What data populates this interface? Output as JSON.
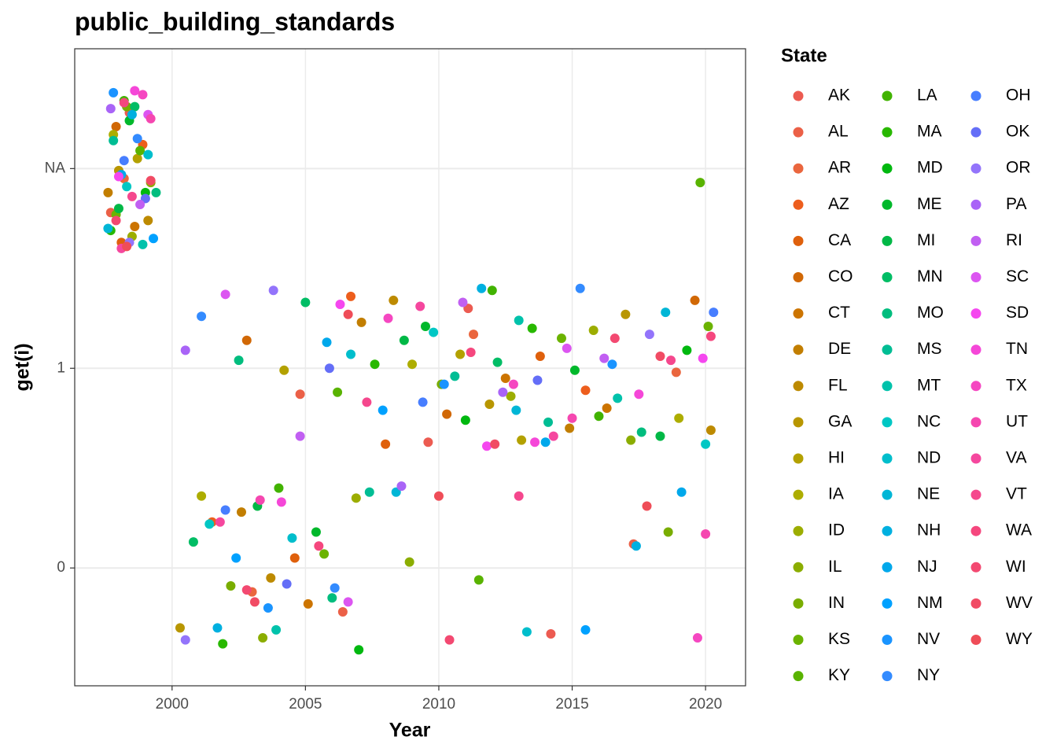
{
  "chart_data": {
    "type": "scatter",
    "title": "public_building_standards",
    "x_label": "Year",
    "y_label": "get(i)",
    "legend_title": "State",
    "xlim": [
      1996.35,
      2021.5
    ],
    "xticks": [
      2000,
      2005,
      2010,
      2015,
      2020
    ],
    "ylim": [
      -0.59,
      2.6
    ],
    "yticks": [
      0,
      1,
      {
        "value": 2,
        "label": "NA"
      }
    ],
    "grid": true,
    "series": [
      {
        "name": "AK",
        "color": "hsl(4,80%,62%)",
        "x": [
          1998.4,
          2009.6,
          2014.2,
          2011.1
        ],
        "values": [
          2.28,
          0.63,
          -0.33,
          1.3
        ]
      },
      {
        "name": "AL",
        "color": "hsl(9,80%,60%)",
        "x": [
          1997.7,
          2004.8,
          2017.3,
          2006.4
        ],
        "values": [
          1.78,
          0.87,
          0.12,
          -0.22
        ]
      },
      {
        "name": "AR",
        "color": "hsl(14,80%,58%)",
        "x": [
          1998.2,
          2011.3,
          2003.0,
          2018.9
        ],
        "values": [
          1.95,
          1.17,
          -0.12,
          0.98
        ]
      },
      {
        "name": "AZ",
        "color": "hsl(19,85%,52%)",
        "x": [
          1998.9,
          2006.7,
          2001.5,
          2015.5
        ],
        "values": [
          2.12,
          1.36,
          0.23,
          0.89
        ]
      },
      {
        "name": "CA",
        "color": "hsl(24,90%,46%)",
        "x": [
          1998.1,
          2013.8,
          2004.6,
          2008.0
        ],
        "values": [
          1.63,
          1.06,
          0.05,
          0.62
        ]
      },
      {
        "name": "CO",
        "color": "hsl(29,95%,42%)",
        "x": [
          1997.9,
          2002.8,
          2010.3,
          2019.6
        ],
        "values": [
          2.21,
          1.14,
          0.77,
          1.34
        ]
      },
      {
        "name": "CT",
        "color": "hsl(34,100%,40%)",
        "x": [
          1998.6,
          2012.5,
          2005.1,
          2016.3
        ],
        "values": [
          1.71,
          0.95,
          -0.18,
          0.8
        ]
      },
      {
        "name": "DE",
        "color": "hsl(39,100%,38%)",
        "x": [
          1997.6,
          2007.1,
          2002.6,
          2014.9
        ],
        "values": [
          1.88,
          1.23,
          0.28,
          0.7
        ]
      },
      {
        "name": "FL",
        "color": "hsl(44,100%,37%)",
        "x": [
          1999.1,
          2008.3,
          2020.2,
          2003.7
        ],
        "values": [
          1.74,
          1.34,
          0.69,
          -0.05
        ]
      },
      {
        "name": "GA",
        "color": "hsl(49,100%,36%)",
        "x": [
          1998.0,
          2011.9,
          2000.3,
          2017.0
        ],
        "values": [
          1.99,
          0.82,
          -0.3,
          1.27
        ]
      },
      {
        "name": "HI",
        "color": "hsl(54,100%,35%)",
        "x": [
          1998.7,
          2004.2,
          2013.1,
          2010.8
        ],
        "values": [
          2.05,
          0.99,
          0.64,
          1.07
        ]
      },
      {
        "name": "IA",
        "color": "hsl(60,100%,34%)",
        "x": [
          1997.8,
          2009.0,
          2001.1,
          2019.0
        ],
        "values": [
          2.17,
          1.02,
          0.36,
          0.75
        ]
      },
      {
        "name": "ID",
        "color": "hsl(66,100%,34%)",
        "x": [
          1998.5,
          2015.8,
          2006.9,
          2012.7
        ],
        "values": [
          1.66,
          1.19,
          0.35,
          0.86
        ]
      },
      {
        "name": "IL",
        "color": "hsl(72,100%,34%)",
        "x": [
          1999.2,
          2017.2,
          2003.4,
          2008.9
        ],
        "values": [
          1.93,
          0.64,
          -0.35,
          0.03
        ]
      },
      {
        "name": "IN",
        "color": "hsl(78,100%,34%)",
        "x": [
          1998.3,
          2010.1,
          2002.2,
          2018.6
        ],
        "values": [
          2.31,
          0.92,
          -0.09,
          0.18
        ]
      },
      {
        "name": "KS",
        "color": "hsl(84,100%,35%)",
        "x": [
          1997.9,
          2014.6,
          2005.7,
          2020.1
        ],
        "values": [
          1.77,
          1.15,
          0.07,
          1.21
        ]
      },
      {
        "name": "KY",
        "color": "hsl(90,100%,35%)",
        "x": [
          1998.8,
          2006.2,
          2011.5,
          2019.8
        ],
        "values": [
          2.09,
          0.88,
          -0.06,
          1.93
        ]
      },
      {
        "name": "LA",
        "color": "hsl(98,100%,35%)",
        "x": [
          1998.2,
          2012.0,
          2004.0,
          2016.0
        ],
        "values": [
          2.34,
          1.39,
          0.4,
          0.76
        ]
      },
      {
        "name": "MA",
        "color": "hsl(107,100%,36%)",
        "x": [
          1997.7,
          2007.6,
          2001.9,
          2013.5
        ],
        "values": [
          1.69,
          1.02,
          -0.38,
          1.2
        ]
      },
      {
        "name": "MD",
        "color": "hsl(125,100%,36%)",
        "x": [
          1999.0,
          2011.0,
          2007.0,
          2019.3
        ],
        "values": [
          1.88,
          0.74,
          -0.41,
          1.09
        ]
      },
      {
        "name": "ME",
        "color": "hsl(134,100%,36%)",
        "x": [
          1998.4,
          2015.1,
          2005.4,
          2009.5
        ],
        "values": [
          2.24,
          0.99,
          0.18,
          1.21
        ]
      },
      {
        "name": "MI",
        "color": "hsl(143,100%,36%)",
        "x": [
          1998.0,
          2008.7,
          2003.2,
          2018.3
        ],
        "values": [
          1.8,
          1.14,
          0.31,
          0.66
        ]
      },
      {
        "name": "MN",
        "color": "hsl(152,100%,37%)",
        "x": [
          1998.6,
          2005.0,
          2012.2,
          2000.8
        ],
        "values": [
          2.31,
          1.33,
          1.03,
          0.13
        ]
      },
      {
        "name": "MO",
        "color": "hsl(160,100%,37%)",
        "x": [
          1999.4,
          2017.6,
          2006.0,
          2002.5
        ],
        "values": [
          1.88,
          0.68,
          -0.15,
          1.04
        ]
      },
      {
        "name": "MS",
        "color": "hsl(167,100%,37%)",
        "x": [
          1997.8,
          2010.6,
          2007.4,
          2014.1
        ],
        "values": [
          2.14,
          0.96,
          0.38,
          0.73
        ]
      },
      {
        "name": "MT",
        "color": "hsl(173,100%,38%)",
        "x": [
          1998.9,
          2013.0,
          2003.9,
          2016.7
        ],
        "values": [
          1.62,
          1.24,
          -0.31,
          0.85
        ]
      },
      {
        "name": "NC",
        "color": "hsl(179,100%,39%)",
        "x": [
          1998.3,
          2009.8,
          2001.4,
          2020.0
        ],
        "values": [
          1.91,
          1.18,
          0.22,
          0.62
        ]
      },
      {
        "name": "ND",
        "color": "hsl(184,100%,40%)",
        "x": [
          1999.1,
          2006.7,
          2013.3,
          2004.5
        ],
        "values": [
          2.07,
          1.07,
          -0.32,
          0.15
        ]
      },
      {
        "name": "NE",
        "color": "hsl(189,100%,42%)",
        "x": [
          1997.6,
          2012.9,
          2008.4,
          2018.5
        ],
        "values": [
          1.7,
          0.79,
          0.38,
          1.28
        ]
      },
      {
        "name": "NH",
        "color": "hsl(193,100%,44%)",
        "x": [
          1998.5,
          2011.6,
          2017.4,
          2001.7
        ],
        "values": [
          2.27,
          1.4,
          0.11,
          -0.3
        ]
      },
      {
        "name": "NJ",
        "color": "hsl(197,100%,46%)",
        "x": [
          1998.1,
          2014.0,
          2019.1,
          2005.8
        ],
        "values": [
          1.97,
          0.63,
          0.38,
          1.13
        ]
      },
      {
        "name": "NM",
        "color": "hsl(202,100%,50%)",
        "x": [
          1999.3,
          2007.9,
          2015.5,
          2002.4
        ],
        "values": [
          1.65,
          0.79,
          -0.31,
          0.05
        ]
      },
      {
        "name": "NV",
        "color": "hsl(208,100%,55%)",
        "x": [
          1997.8,
          2016.5,
          2010.2,
          2003.6
        ],
        "values": [
          2.38,
          1.02,
          0.92,
          -0.2
        ]
      },
      {
        "name": "NY",
        "color": "hsl(214,100%,60%)",
        "x": [
          1998.7,
          2001.1,
          2015.3,
          2006.1
        ],
        "values": [
          2.15,
          1.26,
          1.4,
          -0.1
        ]
      },
      {
        "name": "OH",
        "color": "hsl(222,100%,64%)",
        "x": [
          1998.2,
          2020.3,
          2002.0,
          2009.4
        ],
        "values": [
          2.04,
          1.28,
          0.29,
          0.83
        ]
      },
      {
        "name": "OK",
        "color": "hsl(236,90%,68%)",
        "x": [
          1999.0,
          2005.9,
          2013.7,
          2004.3
        ],
        "values": [
          1.85,
          1.0,
          0.94,
          -0.08
        ]
      },
      {
        "name": "OR",
        "color": "hsl(254,95%,72%)",
        "x": [
          1998.4,
          2003.8,
          2017.9,
          2000.5
        ],
        "values": [
          1.63,
          1.39,
          1.17,
          -0.36
        ]
      },
      {
        "name": "PA",
        "color": "hsl(268,90%,68%)",
        "x": [
          1997.7,
          2012.4,
          2000.5,
          2008.6
        ],
        "values": [
          2.3,
          0.88,
          1.09,
          0.41
        ]
      },
      {
        "name": "RI",
        "color": "hsl(280,85%,66%)",
        "x": [
          1998.8,
          2010.9,
          2004.8,
          2016.2
        ],
        "values": [
          1.82,
          1.33,
          0.66,
          1.05
        ]
      },
      {
        "name": "SC",
        "color": "hsl(292,85%,64%)",
        "x": [
          1999.1,
          2002.0,
          2014.8,
          2006.6
        ],
        "values": [
          2.27,
          1.37,
          1.1,
          -0.17
        ]
      },
      {
        "name": "SD",
        "color": "hsl(302,90%,62%)",
        "x": [
          1998.0,
          2011.8,
          2006.3,
          2019.9
        ],
        "values": [
          1.96,
          0.61,
          1.32,
          1.05
        ]
      },
      {
        "name": "TN",
        "color": "hsl(310,90%,62%)",
        "x": [
          1998.6,
          2017.5,
          2004.1,
          2013.6
        ],
        "values": [
          2.39,
          0.87,
          0.33,
          0.63
        ]
      },
      {
        "name": "TX",
        "color": "hsl(318,90%,62%)",
        "x": [
          1998.9,
          2012.8,
          2019.7,
          2008.1
        ],
        "values": [
          2.37,
          0.92,
          -0.35,
          1.25
        ]
      },
      {
        "name": "UT",
        "color": "hsl(324,90%,62%)",
        "x": [
          1999.2,
          2015.0,
          2020.0,
          2003.3
        ],
        "values": [
          2.25,
          0.75,
          0.17,
          0.34
        ]
      },
      {
        "name": "VA",
        "color": "hsl(330,90%,62%)",
        "x": [
          1998.1,
          2009.3,
          2001.8,
          2014.3
        ],
        "values": [
          1.6,
          1.31,
          0.23,
          0.66
        ]
      },
      {
        "name": "VT",
        "color": "hsl(336,90%,62%)",
        "x": [
          1998.5,
          2007.3,
          2013.0,
          2018.7
        ],
        "values": [
          1.86,
          0.83,
          0.36,
          1.04
        ]
      },
      {
        "name": "WA",
        "color": "hsl(341,90%,62%)",
        "x": [
          1998.2,
          2011.2,
          2005.5,
          2020.2
        ],
        "values": [
          2.33,
          1.08,
          0.11,
          1.16
        ]
      },
      {
        "name": "WI",
        "color": "hsl(346,88%,62%)",
        "x": [
          1997.9,
          2016.6,
          2002.8,
          2010.4
        ],
        "values": [
          1.74,
          1.15,
          -0.11,
          -0.36
        ]
      },
      {
        "name": "WV",
        "color": "hsl(351,86%,62%)",
        "x": [
          1999.2,
          2018.3,
          2003.1,
          2012.1
        ],
        "values": [
          1.94,
          1.06,
          -0.17,
          0.62
        ]
      },
      {
        "name": "WY",
        "color": "hsl(356,84%,62%)",
        "x": [
          1998.3,
          2006.6,
          2010.0,
          2017.8
        ],
        "values": [
          1.61,
          1.27,
          0.36,
          0.31
        ]
      }
    ]
  }
}
